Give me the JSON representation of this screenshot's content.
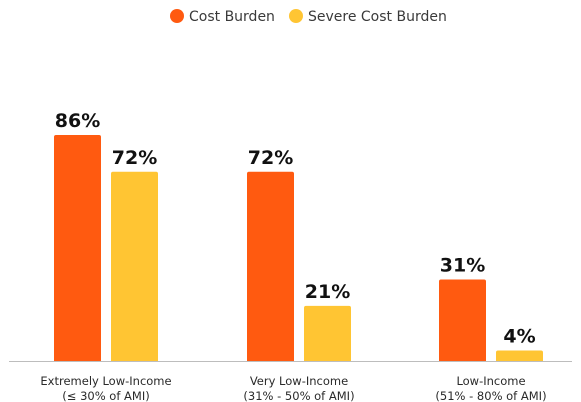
{
  "chart_data": {
    "type": "bar",
    "title": "",
    "xlabel": "",
    "ylabel": "",
    "ylim": [
      0,
      100
    ],
    "grid": false,
    "legend_position": "top-center",
    "categories": [
      [
        "Extremely Low-Income",
        "(≤ 30% of AMI)"
      ],
      [
        "Very Low-Income",
        "(31% - 50% of AMI)"
      ],
      [
        "Low-Income",
        "(51% - 80% of AMI)"
      ]
    ],
    "series": [
      {
        "name": "Cost Burden",
        "color": "#ff5a10",
        "values": [
          86,
          72,
          31
        ],
        "labels": [
          "86%",
          "72%",
          "31%"
        ]
      },
      {
        "name": "Severe Cost Burden",
        "color": "#ffc533",
        "values": [
          72,
          21,
          4
        ],
        "labels": [
          "72%",
          "21%",
          "4%"
        ]
      }
    ]
  }
}
